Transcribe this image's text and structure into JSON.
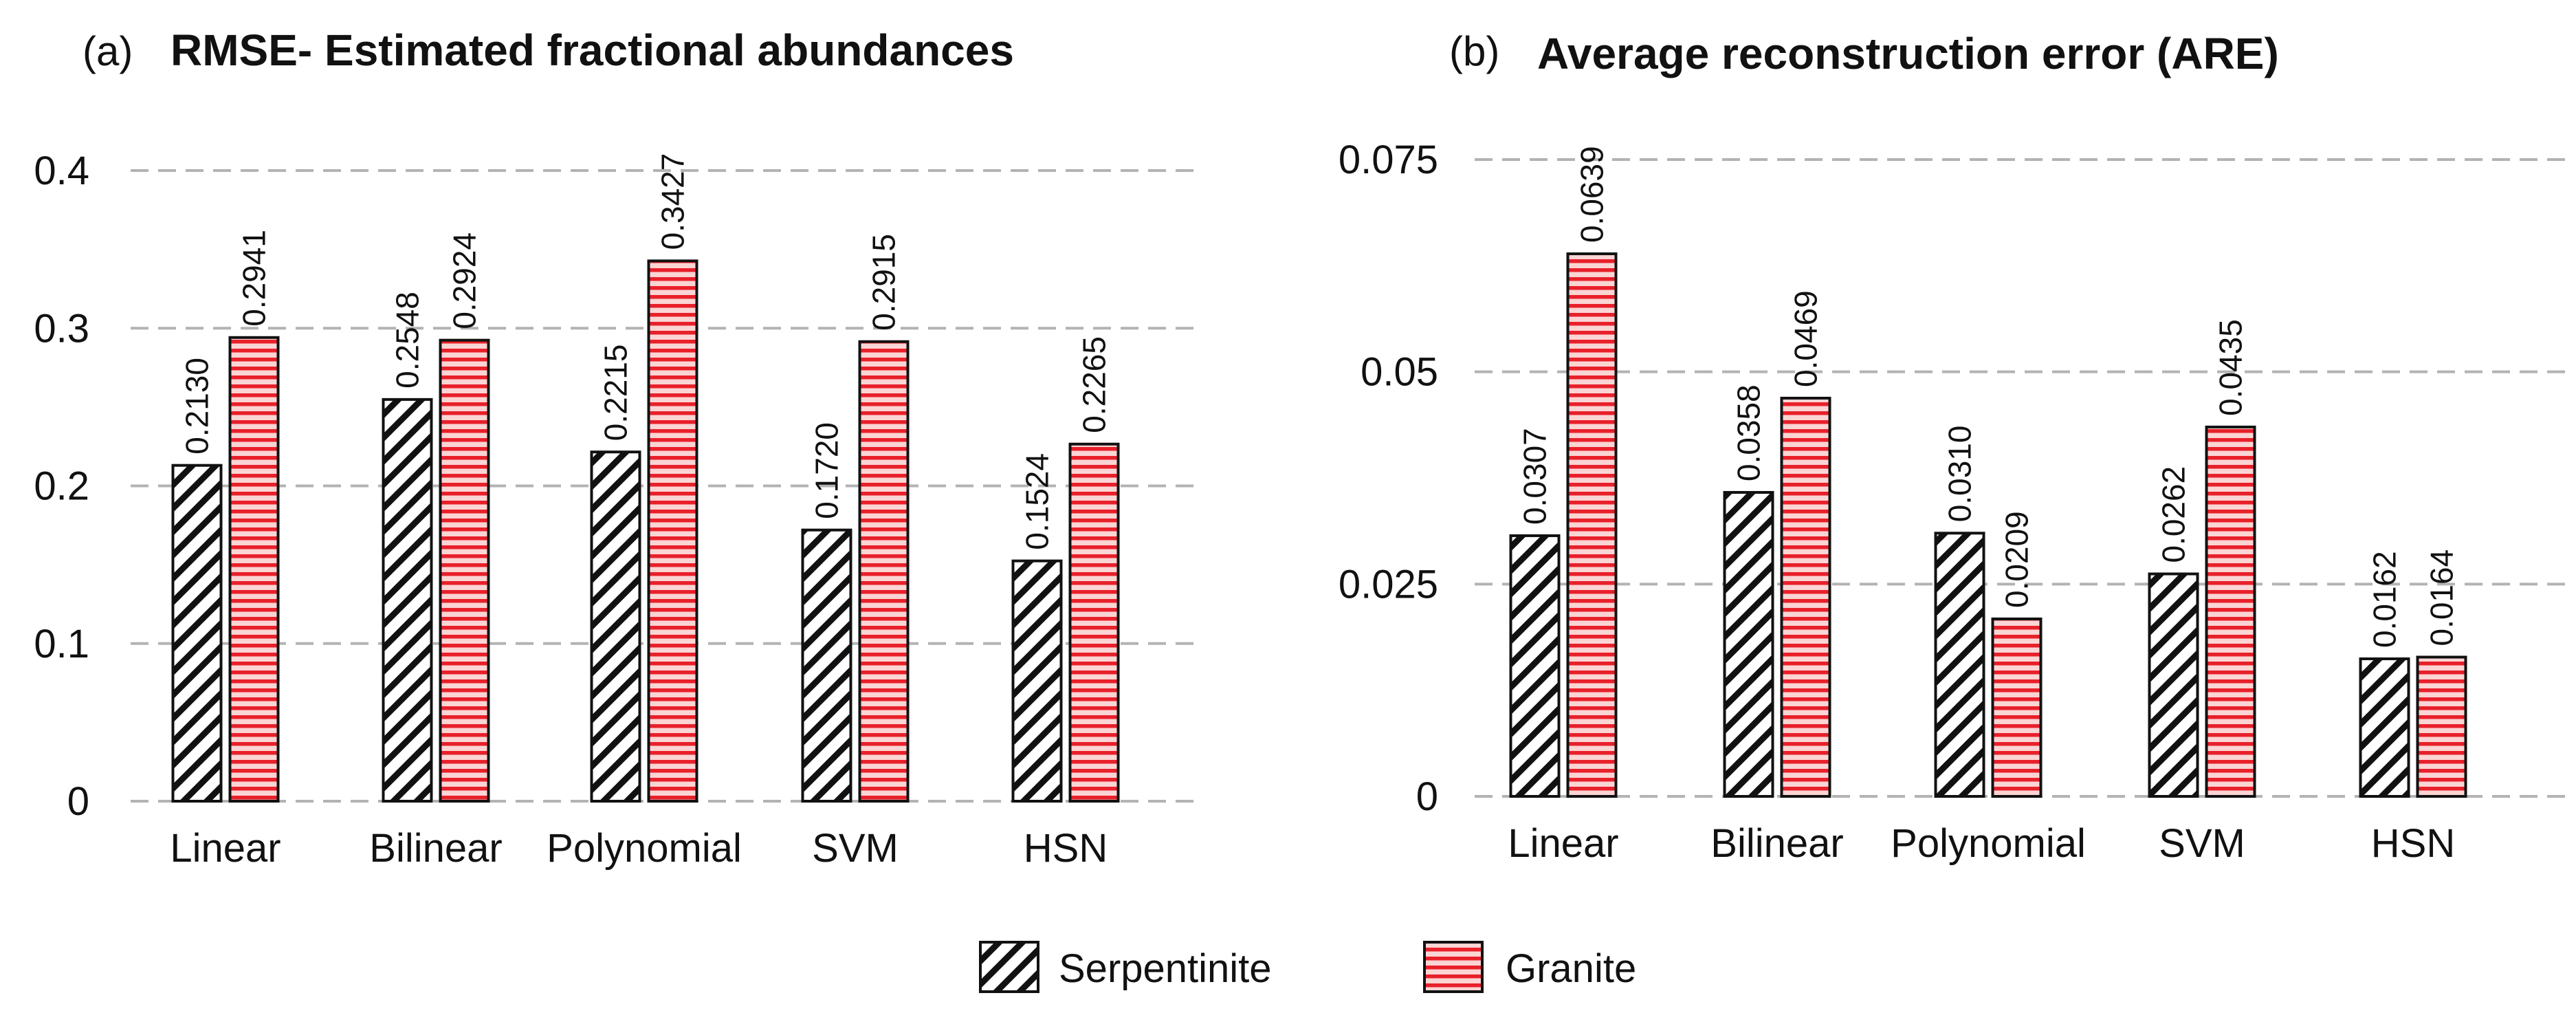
{
  "chart_data": [
    {
      "type": "bar",
      "panel_letter": "(a)",
      "title": "RMSE- Estimated fractional abundances",
      "categories": [
        "Linear",
        "Bilinear",
        "Polynomial",
        "SVM",
        "HSN"
      ],
      "series": [
        {
          "name": "Serpentinite",
          "values": [
            0.213,
            0.2548,
            0.2215,
            0.172,
            0.1524
          ],
          "labels": [
            "0.2130",
            "0.2548",
            "0.2215",
            "0.1720",
            "0.1524"
          ]
        },
        {
          "name": "Granite",
          "values": [
            0.2941,
            0.2924,
            0.3427,
            0.2915,
            0.2265
          ],
          "labels": [
            "0.2941",
            "0.2924",
            "0.3427",
            "0.2915",
            "0.2265"
          ]
        }
      ],
      "xlabel": "",
      "ylabel": "",
      "ylim": [
        0,
        0.4
      ],
      "yticks": [
        0,
        0.1,
        0.2,
        0.3,
        0.4
      ],
      "ytick_labels": [
        "0",
        "0.1",
        "0.2",
        "0.3",
        "0.4"
      ],
      "grid": true
    },
    {
      "type": "bar",
      "panel_letter": "(b)",
      "title": "Average reconstruction error (ARE)",
      "categories": [
        "Linear",
        "Bilinear",
        "Polynomial",
        "SVM",
        "HSN"
      ],
      "series": [
        {
          "name": "Serpentinite",
          "values": [
            0.0307,
            0.0358,
            0.031,
            0.0262,
            0.0162
          ],
          "labels": [
            "0.0307",
            "0.0358",
            "0.0310",
            "0.0262",
            "0.0162"
          ]
        },
        {
          "name": "Granite",
          "values": [
            0.0639,
            0.0469,
            0.0209,
            0.0435,
            0.0164
          ],
          "labels": [
            "0.0639",
            "0.0469",
            "0.0209",
            "0.0435",
            "0.0164"
          ]
        }
      ],
      "xlabel": "",
      "ylabel": "",
      "ylim": [
        0,
        0.075
      ],
      "yticks": [
        0,
        0.025,
        0.05,
        0.075
      ],
      "ytick_labels": [
        "0",
        "0.025",
        "0.05",
        "0.075"
      ],
      "grid": true
    }
  ],
  "legend": {
    "placement": "bottom-center",
    "items": [
      {
        "name": "Serpentinite",
        "pattern": "diagonal-hatch",
        "color": "#111111"
      },
      {
        "name": "Granite",
        "pattern": "horizontal-stripes",
        "color": "#e8202a"
      }
    ]
  },
  "colors": {
    "granite_red": "#e8202a",
    "granite_light": "#fbd4d4",
    "serpentinite_black": "#111111",
    "grid": "#b3b3b3"
  }
}
